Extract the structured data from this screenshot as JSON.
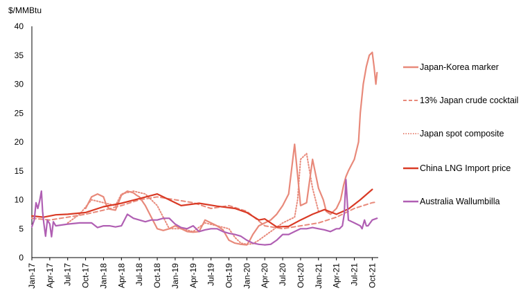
{
  "chart_data": {
    "type": "line",
    "title": "",
    "ylabel": "$/MMBtu",
    "xlabel": "",
    "ylim": [
      0,
      40
    ],
    "yticks": [
      "0",
      "5",
      "10",
      "15",
      "20",
      "25",
      "30",
      "35",
      "40"
    ],
    "xlim": [
      "2017-01",
      "2021-11"
    ],
    "xticks": [
      "Jan-17",
      "Apr-17",
      "Jul-17",
      "Oct-17",
      "Jan-18",
      "Apr-18",
      "Jul-18",
      "Oct-18",
      "Jan-19",
      "Apr-19",
      "Jul-19",
      "Oct-19",
      "Jan-20",
      "Apr-20",
      "Jul-20",
      "Oct-20",
      "Jan-21",
      "Apr-21",
      "Jul-21",
      "Oct-21"
    ],
    "grid": false,
    "legend_position": "right",
    "series": [
      {
        "name": "Japan-Korea marker",
        "color": "#E8897A",
        "style": "solid",
        "x": [
          0,
          1.5,
          3,
          4,
          5,
          6,
          7,
          8,
          9,
          10,
          11,
          12,
          12.5,
          13,
          14,
          15,
          16,
          17,
          17.5,
          18,
          19,
          20,
          21,
          22,
          23,
          24,
          25,
          26,
          27,
          28,
          29,
          30,
          31,
          32,
          33,
          34,
          35,
          36,
          36.5,
          37,
          38,
          39,
          40,
          41,
          42,
          43,
          44,
          45,
          46,
          47,
          48,
          48.8,
          49.3,
          50,
          51,
          51.7,
          52.2,
          52.6,
          53,
          53.5,
          54,
          54.7,
          55,
          55.5,
          56,
          56.5,
          57,
          57.3,
          57.6,
          57.8
        ],
        "y": [
          null,
          null,
          null,
          null,
          null,
          null,
          null,
          null,
          8.5,
          10.5,
          11,
          10.5,
          9,
          8.4,
          8.2,
          10.8,
          11.5,
          11.2,
          10.8,
          10.5,
          9,
          7,
          5,
          4.7,
          5,
          5.5,
          5,
          4.5,
          4.4,
          4.5,
          6.5,
          6,
          5.5,
          4.8,
          3,
          2.5,
          2.3,
          2.2,
          3,
          4,
          5.5,
          6,
          6.5,
          7.5,
          9,
          11,
          19.6,
          9,
          9.5,
          17,
          12,
          10,
          8,
          7.5,
          8.5,
          10,
          12.5,
          14,
          15,
          16,
          17,
          20,
          25,
          30,
          33,
          35,
          35.5,
          33,
          30,
          32
        ]
      },
      {
        "name": "13% Japan crude cocktail",
        "color": "#E8897A",
        "style": "dashed",
        "x": [
          0,
          3,
          6,
          9,
          12,
          15,
          18,
          21,
          24,
          27,
          30,
          33,
          36,
          39,
          42,
          45,
          48,
          51,
          54,
          57,
          57.8
        ],
        "y": [
          6.8,
          6.5,
          7,
          7.5,
          8.2,
          9,
          10,
          10.5,
          10,
          9.5,
          8.5,
          9,
          8,
          5.5,
          5,
          5.5,
          6,
          7,
          8.5,
          9.5,
          9.6
        ]
      },
      {
        "name": "Japan spot composite",
        "color": "#E8897A",
        "style": "dotted",
        "x": [
          0,
          3,
          6,
          8,
          10,
          12,
          14,
          15,
          17,
          19,
          21,
          23,
          25,
          27,
          29,
          31,
          33,
          34,
          35,
          36,
          37,
          38,
          40,
          42,
          44,
          44.5,
          45,
          46,
          47,
          47.5,
          48,
          49,
          50
        ],
        "y": [
          null,
          null,
          6,
          7.5,
          10,
          9.5,
          9,
          11,
          11.5,
          11,
          9,
          5,
          5,
          4.5,
          6,
          5.5,
          5,
          3.5,
          2.5,
          2.3,
          2.4,
          3,
          4.5,
          6,
          7,
          10,
          17,
          18,
          12,
          10,
          8,
          null,
          null
        ]
      },
      {
        "name": "China LNG Import price",
        "color": "#D93A25",
        "style": "solid",
        "x": [
          0,
          2,
          4,
          6,
          9,
          12,
          15,
          18,
          21,
          23,
          25,
          28,
          31,
          34,
          36,
          38,
          39,
          41,
          43,
          45,
          47,
          49,
          51,
          53,
          55,
          57
        ],
        "y": [
          7.2,
          7,
          7.4,
          7.5,
          7.8,
          8.8,
          9.4,
          10.2,
          11,
          10,
          9,
          9.4,
          8.9,
          8.5,
          7.8,
          6.5,
          6.7,
          5.3,
          5.4,
          6.5,
          7.5,
          8.3,
          7.5,
          8.4,
          10,
          11.8
        ]
      },
      {
        "name": "Australia Wallumbilla",
        "color": "#B05FB3",
        "style": "solid",
        "x": [
          0,
          0.4,
          0.7,
          1,
          1.3,
          1.6,
          1.8,
          2,
          2.3,
          2.6,
          3,
          3.3,
          3.6,
          4,
          6,
          8,
          10,
          11,
          12,
          13,
          14,
          15,
          16,
          17,
          18,
          19,
          20,
          21,
          22,
          23,
          24,
          25,
          26,
          27,
          28,
          29,
          30,
          31,
          32,
          33,
          34,
          35,
          36,
          37,
          38,
          39,
          40,
          41,
          42,
          43,
          44,
          45,
          46,
          47,
          48,
          49,
          50,
          51,
          51.5,
          52,
          52.3,
          52.6,
          53,
          54,
          55,
          55.3,
          55.7,
          56,
          56.3,
          57,
          57.8
        ],
        "y": [
          5.3,
          6.5,
          9.5,
          8.5,
          9.8,
          11.5,
          8,
          6,
          3.7,
          6.5,
          5.8,
          3.6,
          6.2,
          5.5,
          5.8,
          6,
          6,
          5.2,
          5.5,
          5.5,
          5.3,
          5.5,
          7.5,
          6.8,
          6.5,
          6.2,
          6.5,
          6.5,
          6.8,
          6.8,
          5.8,
          5.2,
          5,
          5.5,
          4.5,
          4.8,
          5,
          5,
          4.5,
          4.2,
          4,
          3.7,
          3,
          2.5,
          2.3,
          2.2,
          2.3,
          3,
          4,
          4,
          4.5,
          5,
          5,
          5.2,
          5,
          4.8,
          4.5,
          5,
          5,
          5.5,
          7.5,
          13.5,
          6.5,
          6,
          5.5,
          5,
          6.5,
          5.5,
          5.5,
          6.5,
          6.8
        ]
      }
    ]
  }
}
